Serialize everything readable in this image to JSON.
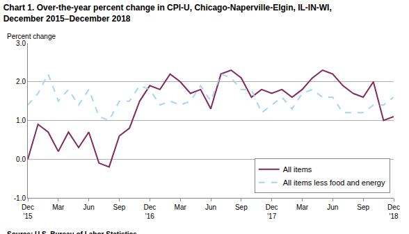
{
  "chart_data": {
    "type": "line",
    "title": "Chart 1. Over-the-year percent change in CPI-U, Chicago-Naperville-Elgin, IL-IN-WI,\nDecember 2015–December 2018",
    "y_label": "Percent change",
    "source": "Source: U.S. Bureau of Labor Statistics.",
    "categories": [
      "Dec\n'15",
      null,
      null,
      "Mar",
      null,
      null,
      "Jun",
      null,
      null,
      "Sep",
      null,
      null,
      "Dec\n'16",
      null,
      null,
      "Mar",
      null,
      null,
      "Jun",
      null,
      null,
      "Sep",
      null,
      null,
      "Dec\n'17",
      null,
      null,
      "Mar",
      null,
      null,
      "Jun",
      null,
      null,
      "Sep",
      null,
      null,
      "Dec\n'18"
    ],
    "series": [
      {
        "name": "All items",
        "color": "#7f2a5a",
        "line_style": "solid",
        "values": [
          0.0,
          0.9,
          0.7,
          0.2,
          0.7,
          0.3,
          0.7,
          -0.1,
          -0.2,
          0.6,
          0.8,
          1.5,
          1.9,
          1.8,
          2.2,
          2.0,
          1.7,
          1.8,
          1.3,
          2.2,
          2.3,
          2.1,
          1.6,
          1.8,
          1.7,
          1.8,
          1.6,
          1.8,
          2.1,
          2.3,
          2.2,
          1.9,
          1.7,
          1.6,
          2.0,
          1.0,
          1.1
        ]
      },
      {
        "name": "All items less food and energy",
        "color": "#a6d4f2",
        "line_style": "dash",
        "values": [
          1.4,
          1.7,
          2.2,
          1.5,
          1.8,
          1.4,
          1.8,
          1.1,
          1.0,
          1.5,
          1.5,
          1.9,
          1.8,
          1.4,
          1.5,
          1.4,
          1.5,
          1.9,
          1.5,
          2.2,
          2.1,
          1.8,
          1.8,
          1.2,
          1.4,
          1.6,
          1.3,
          1.7,
          1.8,
          1.6,
          1.6,
          1.2,
          1.2,
          1.2,
          1.4,
          1.4,
          1.6
        ]
      }
    ],
    "ylim": [
      -1,
      3
    ],
    "yticks": [
      {
        "value": -1,
        "label": "-1.0"
      },
      {
        "value": 0,
        "label": "0.0"
      },
      {
        "value": 1,
        "label": "1.0"
      },
      {
        "value": 2,
        "label": "2.0"
      },
      {
        "value": 3,
        "label": "3.0"
      }
    ],
    "grid": true,
    "legend": "lower right"
  }
}
